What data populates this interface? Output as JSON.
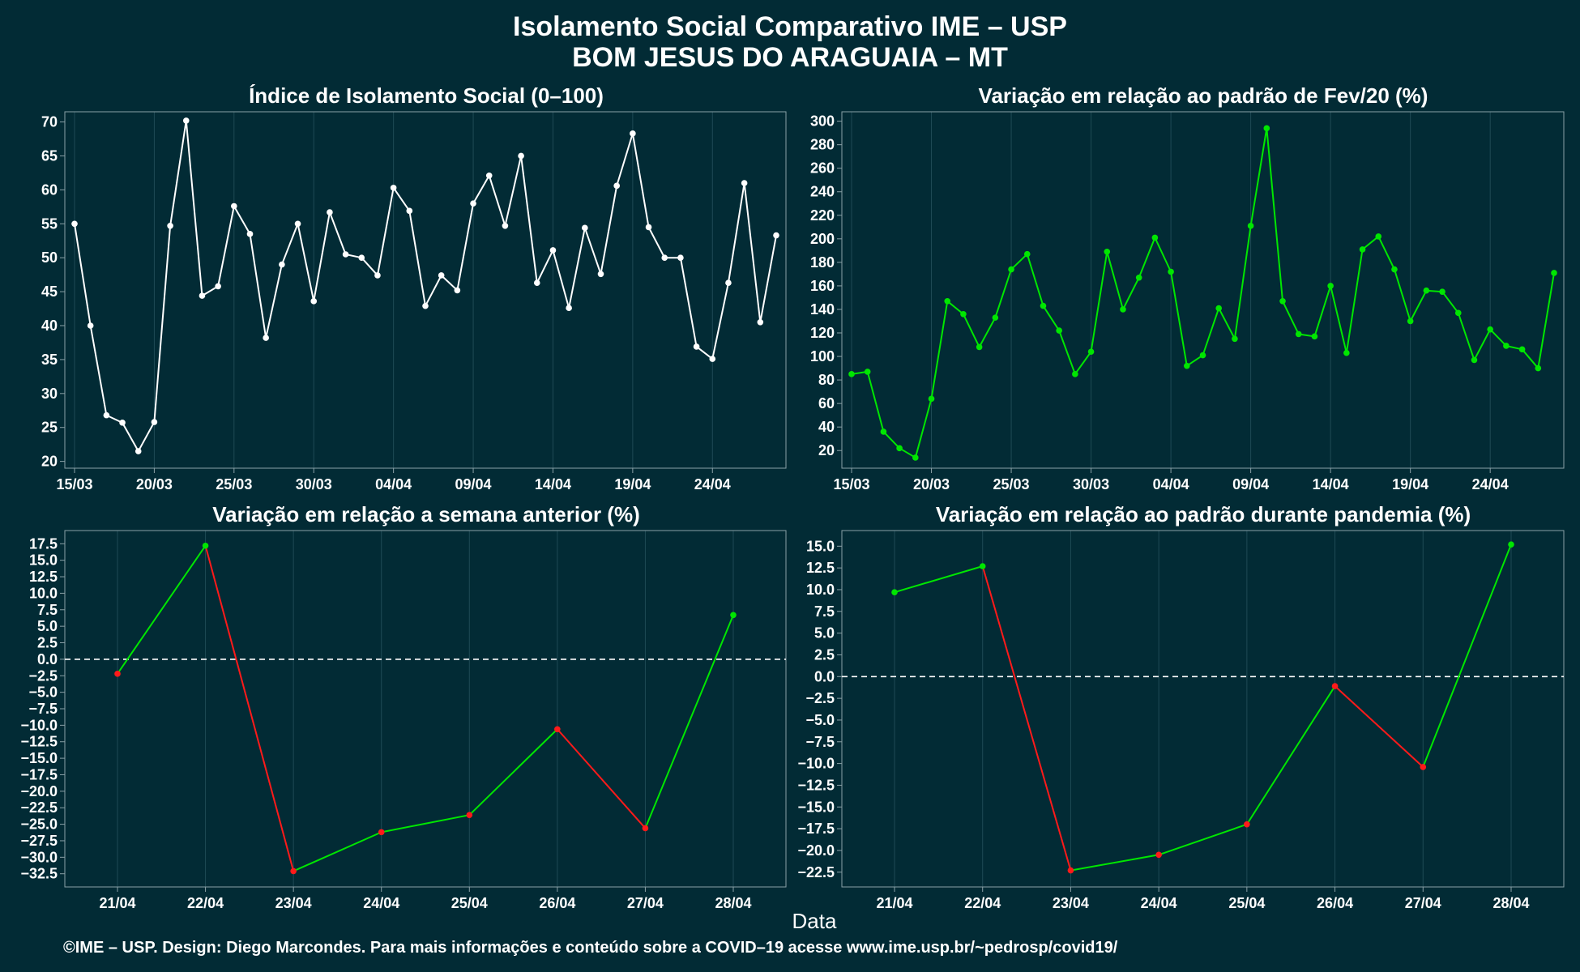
{
  "header": {
    "title_line1": "Isolamento Social Comparativo IME – USP",
    "title_line2": "BOM JESUS DO ARAGUAIA – MT"
  },
  "xlabel": "Data",
  "caption": "©IME – USP. Design: Diego Marcondes. Para mais informações e conteúdo sobre a COVID–19 acesse www.ime.usp.br/~pedrosp/covid19/",
  "colors": {
    "background": "#022b35",
    "white": "#ffffff",
    "green": "#00e600",
    "red": "#ff1a1a",
    "grid": "#1f4a55"
  },
  "chart_data": [
    {
      "id": "panel1",
      "type": "line",
      "title": "Índice de Isolamento Social (0–100)",
      "xlabel": "",
      "ylabel": "",
      "x_start": "15/03",
      "x_tick_labels": [
        "15/03",
        "20/03",
        "25/03",
        "30/03",
        "04/04",
        "09/04",
        "14/04",
        "19/04",
        "24/04"
      ],
      "x_tick_every": 5,
      "ylim": [
        19,
        71.5
      ],
      "yticks": [
        20,
        25,
        30,
        35,
        40,
        45,
        50,
        55,
        60,
        65,
        70
      ],
      "ytick_labels": [
        "20",
        "25",
        "30",
        "35",
        "40",
        "45",
        "50",
        "55",
        "60",
        "65",
        "70"
      ],
      "color_mode": "single",
      "series": [
        {
          "values": [
            55,
            40,
            26.8,
            25.7,
            21.5,
            25.8,
            54.7,
            70.2,
            44.4,
            45.8,
            57.6,
            53.5,
            38.2,
            49,
            55,
            43.6,
            56.7,
            50.5,
            50,
            47.4,
            60.3,
            56.9,
            42.9,
            47.4,
            45.2,
            58,
            62.1,
            54.7,
            65,
            46.3,
            51.1,
            42.6,
            54.4,
            47.6,
            60.6,
            68.3,
            54.5,
            50,
            50,
            36.9,
            35.1,
            46.3,
            61,
            40.5,
            53.3
          ]
        }
      ]
    },
    {
      "id": "panel2",
      "type": "line",
      "title": "Variação em relação ao padrão de Fev/20 (%)",
      "xlabel": "",
      "ylabel": "",
      "x_start": "15/03",
      "x_tick_labels": [
        "15/03",
        "20/03",
        "25/03",
        "30/03",
        "04/04",
        "09/04",
        "14/04",
        "19/04",
        "24/04"
      ],
      "x_tick_every": 5,
      "ylim": [
        5,
        308
      ],
      "yticks": [
        20,
        40,
        60,
        80,
        100,
        120,
        140,
        160,
        180,
        200,
        220,
        240,
        260,
        280,
        300
      ],
      "ytick_labels": [
        "20",
        "40",
        "60",
        "80",
        "100",
        "120",
        "140",
        "160",
        "180",
        "200",
        "220",
        "240",
        "260",
        "280",
        "300"
      ],
      "color_mode": "single_green",
      "series": [
        {
          "values": [
            85,
            87,
            36,
            22,
            14,
            64,
            147,
            136,
            108,
            133,
            174,
            187,
            143,
            122,
            85,
            104,
            189,
            140,
            167,
            201,
            172,
            92,
            101,
            141,
            115,
            211,
            294,
            147,
            119,
            117,
            160,
            103,
            191,
            202,
            174,
            130,
            156,
            155,
            137,
            97,
            123,
            109,
            106,
            90,
            171
          ]
        }
      ]
    },
    {
      "id": "panel3",
      "type": "line",
      "title": "Variação em relação a semana anterior (%)",
      "xlabel": "",
      "ylabel": "",
      "categories": [
        "21/04",
        "22/04",
        "23/04",
        "24/04",
        "25/04",
        "26/04",
        "27/04",
        "28/04"
      ],
      "ylim": [
        -34.5,
        19.5
      ],
      "yticks": [
        -32.5,
        -30,
        -27.5,
        -25,
        -22.5,
        -20,
        -17.5,
        -15,
        -12.5,
        -10,
        -7.5,
        -5,
        -2.5,
        0,
        2.5,
        5,
        7.5,
        10,
        12.5,
        15,
        17.5
      ],
      "ytick_labels": [
        "−32.5",
        "−30.0",
        "−27.5",
        "−25.0",
        "−22.5",
        "−20.0",
        "−17.5",
        "−15.0",
        "−12.5",
        "−10.0",
        "−7.5",
        "−5.0",
        "−2.5",
        "0.0",
        "2.5",
        "5.0",
        "7.5",
        "10.0",
        "12.5",
        "15.0",
        "17.5"
      ],
      "color_mode": "sign",
      "zero_line": true,
      "series": [
        {
          "values": [
            -2.2,
            17.2,
            -32.1,
            -26.2,
            -23.6,
            -10.6,
            -25.6,
            6.7
          ]
        }
      ]
    },
    {
      "id": "panel4",
      "type": "line",
      "title": "Variação em relação ao padrão durante pandemia (%)",
      "xlabel": "",
      "ylabel": "",
      "categories": [
        "21/04",
        "22/04",
        "23/04",
        "24/04",
        "25/04",
        "26/04",
        "27/04",
        "28/04"
      ],
      "ylim": [
        -24.2,
        16.8
      ],
      "yticks": [
        -22.5,
        -20,
        -17.5,
        -15,
        -12.5,
        -10,
        -7.5,
        -5,
        -2.5,
        0,
        2.5,
        5,
        7.5,
        10,
        12.5,
        15
      ],
      "ytick_labels": [
        "−22.5",
        "−20.0",
        "−17.5",
        "−15.0",
        "−12.5",
        "−10.0",
        "−7.5",
        "−5.0",
        "−2.5",
        "0.0",
        "2.5",
        "5.0",
        "7.5",
        "10.0",
        "12.5",
        "15.0"
      ],
      "color_mode": "sign",
      "zero_line": true,
      "series": [
        {
          "values": [
            9.7,
            12.7,
            -22.3,
            -20.5,
            -17.0,
            -1.1,
            -10.4,
            15.2
          ]
        }
      ]
    }
  ]
}
